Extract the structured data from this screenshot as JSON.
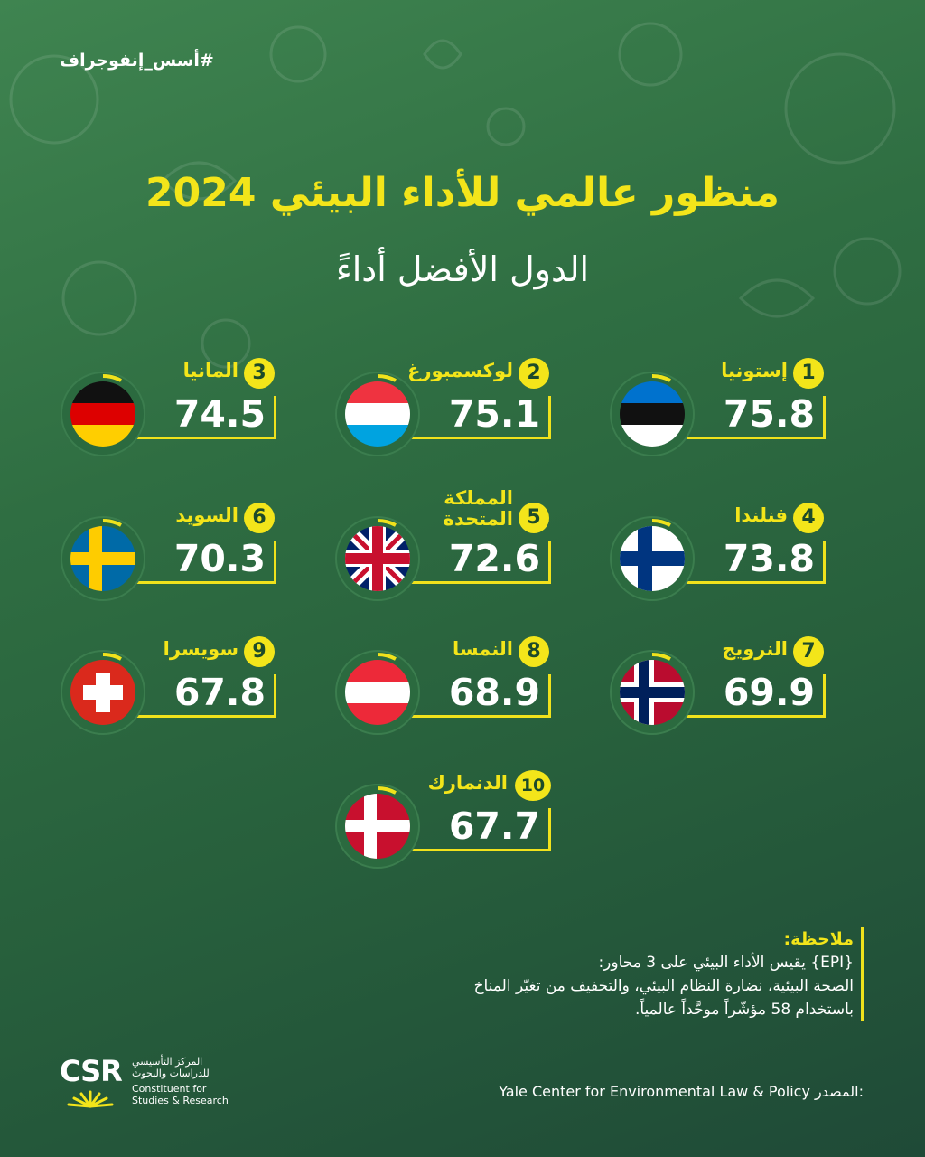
{
  "header": {
    "hashtag": "#أسس_إنفوجراف",
    "title": "منظور عالمي للأداء البيئي 2024",
    "subtitle": "الدول الأفضل أداءً"
  },
  "rankings": [
    {
      "rank": "1",
      "name": "إستونيا",
      "score": "75.8",
      "flag": "estonia-flag-icon"
    },
    {
      "rank": "2",
      "name": "لوكسمبورغ",
      "score": "75.1",
      "flag": "luxembourg-flag-icon"
    },
    {
      "rank": "3",
      "name": "المانيا",
      "score": "74.5",
      "flag": "germany-flag-icon"
    },
    {
      "rank": "4",
      "name": "فنلندا",
      "score": "73.8",
      "flag": "finland-flag-icon"
    },
    {
      "rank": "5",
      "name_line1": "المملكة",
      "name_line2": "المتحدة",
      "score": "72.6",
      "flag": "united-kingdom-flag-icon"
    },
    {
      "rank": "6",
      "name": "السويد",
      "score": "70.3",
      "flag": "sweden-flag-icon"
    },
    {
      "rank": "7",
      "name": "النرويج",
      "score": "69.9",
      "flag": "norway-flag-icon"
    },
    {
      "rank": "8",
      "name": "النمسا",
      "score": "68.9",
      "flag": "austria-flag-icon"
    },
    {
      "rank": "9",
      "name": "سويسرا",
      "score": "67.8",
      "flag": "switzerland-flag-icon"
    },
    {
      "rank": "10",
      "name": "الدنمارك",
      "score": "67.7",
      "flag": "denmark-flag-icon"
    }
  ],
  "note": {
    "title": "ملاحظة:",
    "line1": "{EPI} يقيس الأداء البيئي على 3 محاور:",
    "line2": "الصحة البيئية، نضارة النظام البيئي، والتخفيف من تغيّر المناخ",
    "line3": "باستخدام 58 مؤشّراً موحَّداً عالمياً."
  },
  "source": {
    "label": "المصدر:",
    "value": "Yale Center for Environmental Law & Policy"
  },
  "logo": {
    "mark": "CSR",
    "arabic_line1": "المركز التأسيسي",
    "arabic_line2": "للدراسات والبحوث",
    "english_line1": "Constituent for",
    "english_line2": "Studies & Research"
  },
  "colors": {
    "accent_yellow": "#f3e51a",
    "background_green": "#2f6e42"
  }
}
